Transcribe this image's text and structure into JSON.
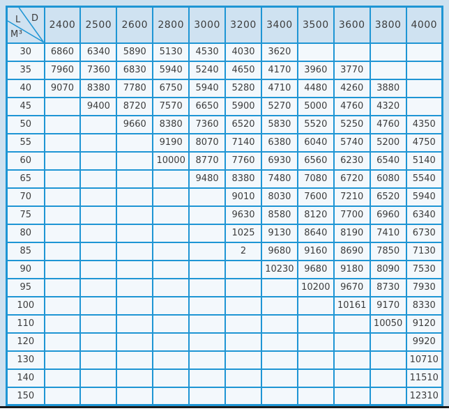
{
  "colors": {
    "page_background": "#cde1f0",
    "grid_border": "#1e95d4",
    "header_cell_background": "#cfe2f1",
    "body_cell_background": "#f3f8fc",
    "text": "#3c3c3c",
    "bottom_rule": "#1a1a1a"
  },
  "chart_data": {
    "type": "table",
    "corner_labels": {
      "top_right": "D",
      "middle": "L",
      "bottom_left": "M³"
    },
    "columns": [
      "2400",
      "2500",
      "2600",
      "2800",
      "3000",
      "3200",
      "3400",
      "3500",
      "3600",
      "3800",
      "4000"
    ],
    "rows": [
      {
        "label": "30",
        "values": [
          "6860",
          "6340",
          "5890",
          "5130",
          "4530",
          "4030",
          "3620",
          "",
          "",
          "",
          ""
        ]
      },
      {
        "label": "35",
        "values": [
          "7960",
          "7360",
          "6830",
          "5940",
          "5240",
          "4650",
          "4170",
          "3960",
          "3770",
          "",
          ""
        ]
      },
      {
        "label": "40",
        "values": [
          "9070",
          "8380",
          "7780",
          "6750",
          "5940",
          "5280",
          "4710",
          "4480",
          "4260",
          "3880",
          ""
        ]
      },
      {
        "label": "45",
        "values": [
          "",
          "9400",
          "8720",
          "7570",
          "6650",
          "5900",
          "5270",
          "5000",
          "4760",
          "4320",
          ""
        ]
      },
      {
        "label": "50",
        "values": [
          "",
          "",
          "9660",
          "8380",
          "7360",
          "6520",
          "5830",
          "5520",
          "5250",
          "4760",
          "4350"
        ]
      },
      {
        "label": "55",
        "values": [
          "",
          "",
          "",
          "9190",
          "8070",
          "7140",
          "6380",
          "6040",
          "5740",
          "5200",
          "4750"
        ]
      },
      {
        "label": "60",
        "values": [
          "",
          "",
          "",
          "10000",
          "8770",
          "7760",
          "6930",
          "6560",
          "6230",
          "6540",
          "5140"
        ]
      },
      {
        "label": "65",
        "values": [
          "",
          "",
          "",
          "",
          "9480",
          "8380",
          "7480",
          "7080",
          "6720",
          "6080",
          "5540"
        ]
      },
      {
        "label": "70",
        "values": [
          "",
          "",
          "",
          "",
          "",
          "9010",
          "8030",
          "7600",
          "7210",
          "6520",
          "5940"
        ]
      },
      {
        "label": "75",
        "values": [
          "",
          "",
          "",
          "",
          "",
          "9630",
          "8580",
          "8120",
          "7700",
          "6960",
          "6340"
        ]
      },
      {
        "label": "80",
        "values": [
          "",
          "",
          "",
          "",
          "",
          "1025",
          "9130",
          "8640",
          "8190",
          "7410",
          "6730"
        ]
      },
      {
        "label": "85",
        "values": [
          "",
          "",
          "",
          "",
          "",
          "2",
          "9680",
          "9160",
          "8690",
          "7850",
          "7130"
        ]
      },
      {
        "label": "90",
        "values": [
          "",
          "",
          "",
          "",
          "",
          "",
          "10230",
          "9680",
          "9180",
          "8090",
          "7530"
        ]
      },
      {
        "label": "95",
        "values": [
          "",
          "",
          "",
          "",
          "",
          "",
          "",
          "10200",
          "9670",
          "8730",
          "7930"
        ]
      },
      {
        "label": "100",
        "values": [
          "",
          "",
          "",
          "",
          "",
          "",
          "",
          "",
          "10161",
          "9170",
          "8330"
        ]
      },
      {
        "label": "110",
        "values": [
          "",
          "",
          "",
          "",
          "",
          "",
          "",
          "",
          "",
          "10050",
          "9120"
        ]
      },
      {
        "label": "120",
        "values": [
          "",
          "",
          "",
          "",
          "",
          "",
          "",
          "",
          "",
          "",
          "9920"
        ]
      },
      {
        "label": "130",
        "values": [
          "",
          "",
          "",
          "",
          "",
          "",
          "",
          "",
          "",
          "",
          "10710"
        ]
      },
      {
        "label": "140",
        "values": [
          "",
          "",
          "",
          "",
          "",
          "",
          "",
          "",
          "",
          "",
          "11510"
        ]
      },
      {
        "label": "150",
        "values": [
          "",
          "",
          "",
          "",
          "",
          "",
          "",
          "",
          "",
          "",
          "12310"
        ]
      }
    ]
  }
}
